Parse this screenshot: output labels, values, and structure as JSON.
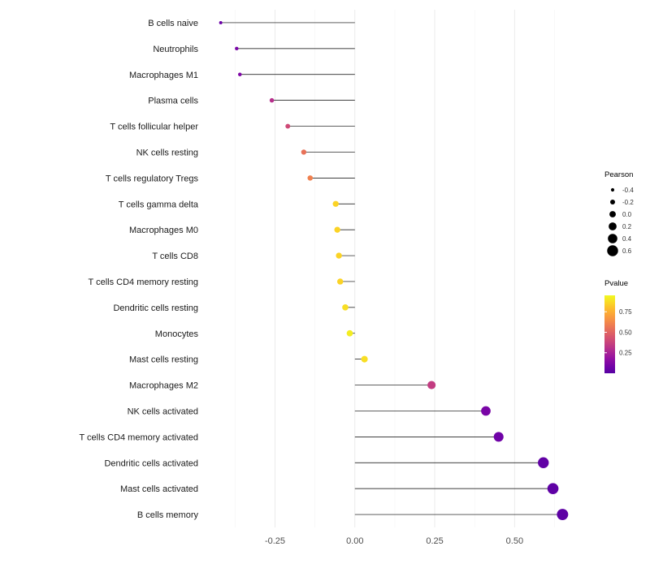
{
  "chart_data": {
    "type": "lollipop",
    "orientation": "horizontal",
    "title": "",
    "xlabel": "",
    "ylabel": "",
    "xlim": [
      -0.47,
      0.7
    ],
    "x_ticks": [
      -0.25,
      0.0,
      0.25,
      0.5
    ],
    "x_tick_labels": [
      "-0.25",
      "0.00",
      "0.25",
      "0.50"
    ],
    "grid": true,
    "items": [
      {
        "label": "B cells naive",
        "pearson": -0.42,
        "pvalue": 0.06
      },
      {
        "label": "Neutrophils",
        "pearson": -0.37,
        "pvalue": 0.1
      },
      {
        "label": "Macrophages M1",
        "pearson": -0.36,
        "pvalue": 0.12
      },
      {
        "label": "Plasma cells",
        "pearson": -0.26,
        "pvalue": 0.3
      },
      {
        "label": "T cells follicular helper",
        "pearson": -0.21,
        "pvalue": 0.4
      },
      {
        "label": "NK cells resting",
        "pearson": -0.16,
        "pvalue": 0.55
      },
      {
        "label": "T cells regulatory  Tregs",
        "pearson": -0.14,
        "pvalue": 0.6
      },
      {
        "label": "T cells gamma delta",
        "pearson": -0.06,
        "pvalue": 0.85
      },
      {
        "label": "Macrophages M0",
        "pearson": -0.055,
        "pvalue": 0.85
      },
      {
        "label": "T cells CD8",
        "pearson": -0.05,
        "pvalue": 0.85
      },
      {
        "label": "T cells CD4 memory resting",
        "pearson": -0.046,
        "pvalue": 0.85
      },
      {
        "label": "Dendritic cells resting",
        "pearson": -0.03,
        "pvalue": 0.88
      },
      {
        "label": "Monocytes",
        "pearson": -0.016,
        "pvalue": 0.92
      },
      {
        "label": "Mast cells resting",
        "pearson": 0.03,
        "pvalue": 0.88
      },
      {
        "label": "Macrophages M2",
        "pearson": 0.24,
        "pvalue": 0.35
      },
      {
        "label": "NK cells activated",
        "pearson": 0.41,
        "pvalue": 0.1
      },
      {
        "label": "T cells CD4 memory activated",
        "pearson": 0.45,
        "pvalue": 0.07
      },
      {
        "label": "Dendritic cells activated",
        "pearson": 0.59,
        "pvalue": 0.03
      },
      {
        "label": "Mast cells activated",
        "pearson": 0.62,
        "pvalue": 0.025
      },
      {
        "label": "B cells memory",
        "pearson": 0.65,
        "pvalue": 0.02
      }
    ],
    "legend_size": {
      "title": "Pearson",
      "values": [
        -0.4,
        -0.2,
        0.0,
        0.2,
        0.4,
        0.6
      ],
      "labels": [
        "-0.4",
        "-0.2",
        "0.0",
        "0.2",
        "0.4",
        "0.6"
      ]
    },
    "legend_color": {
      "title": "Pvalue",
      "tick_values": [
        0.75,
        0.5,
        0.25
      ],
      "tick_labels": [
        "0.75",
        "0.50",
        "0.25"
      ],
      "domain": [
        0.0,
        0.95
      ]
    },
    "colormap": {
      "name": "plasma",
      "stops": [
        "#0d0887",
        "#41049d",
        "#6a00a8",
        "#8f0da4",
        "#b12a90",
        "#cc4778",
        "#e16462",
        "#f2844b",
        "#fca636",
        "#fcce25",
        "#f0f921"
      ],
      "range": [
        0.15,
        1.0
      ]
    }
  },
  "colors": {
    "background": "#ffffff",
    "stem": "#000000",
    "grid_major": "#ebebeb",
    "grid_minor": "#f6f6f6",
    "category_text": "#1a1a1a",
    "axis_tick_text": "#4d4d4d",
    "legend_title_text": "#000000",
    "legend_label_text": "#333333",
    "legend_dot_fill": "#000000"
  }
}
